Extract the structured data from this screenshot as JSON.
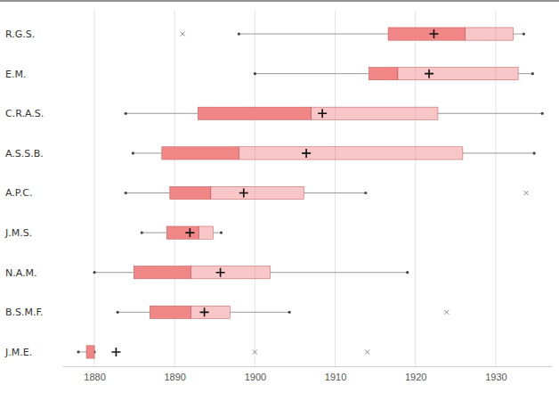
{
  "chart_data": {
    "type": "box",
    "orientation": "horizontal",
    "grid": true,
    "color": "#f08080",
    "categories": [
      "R.G.S.",
      "E.M.",
      "C.R.A.S.",
      "A.S.S.B.",
      "A.P.C.",
      "J.M.S.",
      "N.A.M.",
      "B.S.M.F.",
      "J.M.E."
    ],
    "boxes": [
      {
        "min": 1898,
        "q1": 1916.6,
        "median": 1926.2,
        "q3": 1932.2,
        "max": 1933.5,
        "mean": 1922.3,
        "outliers": [
          1891
        ]
      },
      {
        "min": 1900,
        "q1": 1914.2,
        "median": 1917.8,
        "q3": 1932.8,
        "max": 1934.6,
        "mean": 1921.7,
        "outliers": []
      },
      {
        "min": 1883.9,
        "q1": 1892.9,
        "median": 1907,
        "q3": 1922.8,
        "max": 1935.8,
        "mean": 1908.4,
        "outliers": []
      },
      {
        "min": 1884.8,
        "q1": 1888.4,
        "median": 1898,
        "q3": 1925.9,
        "max": 1934.8,
        "mean": 1906.4,
        "outliers": []
      },
      {
        "min": 1883.9,
        "q1": 1889.4,
        "median": 1894.5,
        "q3": 1906.1,
        "max": 1913.8,
        "mean": 1898.6,
        "outliers": [
          1933.8
        ]
      },
      {
        "min": 1885.9,
        "q1": 1889,
        "median": 1893,
        "q3": 1894.8,
        "max": 1895.8,
        "mean": 1891.9,
        "outliers": []
      },
      {
        "min": 1880,
        "q1": 1884.9,
        "median": 1892,
        "q3": 1901.9,
        "max": 1919,
        "mean": 1895.7,
        "outliers": []
      },
      {
        "min": 1882.9,
        "q1": 1886.9,
        "median": 1892,
        "q3": 1896.9,
        "max": 1904.3,
        "mean": 1893.7,
        "outliers": [
          1923.9
        ]
      },
      {
        "min": 1878,
        "q1": 1879,
        "median": 1880,
        "q3": 1880,
        "max": 1880,
        "mean": 1882.7,
        "outliers": [
          1900,
          1914
        ]
      }
    ],
    "xlim": [
      1876,
      1937
    ],
    "xticks": [
      1880,
      1890,
      1900,
      1910,
      1920,
      1930
    ]
  }
}
